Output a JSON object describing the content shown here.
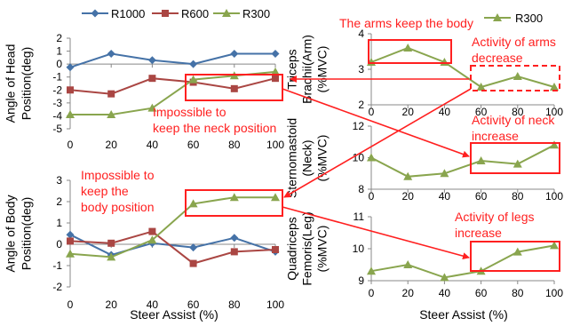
{
  "legend_left": [
    {
      "name": "R1000",
      "color": "#4572A7",
      "marker": "diamond"
    },
    {
      "name": "R600",
      "color": "#AA4643",
      "marker": "square"
    },
    {
      "name": "R300",
      "color": "#89A54E",
      "marker": "triangle"
    }
  ],
  "legend_right": {
    "name": "R300",
    "color": "#89A54E",
    "marker": "triangle"
  },
  "annotation_color": "#ff2020",
  "chart_data": [
    {
      "id": "head",
      "type": "line",
      "ylabel": [
        "Angle of Head",
        "Position(deg)"
      ],
      "x": [
        0,
        20,
        40,
        60,
        80,
        100
      ],
      "xticks": [
        "0",
        "20",
        "40",
        "60",
        "80",
        "100"
      ],
      "ylim": [
        -5,
        2
      ],
      "yticks": [
        -5,
        -4,
        -3,
        -2,
        -1,
        0,
        1,
        2
      ],
      "series": [
        {
          "name": "R1000",
          "color": "#4572A7",
          "marker": "diamond",
          "values": [
            -0.25,
            0.8,
            0.3,
            0.0,
            0.8,
            0.8
          ]
        },
        {
          "name": "R600",
          "color": "#AA4643",
          "marker": "square",
          "values": [
            -2.0,
            -2.3,
            -1.1,
            -1.4,
            -1.9,
            -1.1
          ]
        },
        {
          "name": "R300",
          "color": "#89A54E",
          "marker": "triangle",
          "values": [
            -3.9,
            -3.9,
            -3.4,
            -1.2,
            -0.9,
            -0.6
          ]
        }
      ]
    },
    {
      "id": "body",
      "type": "line",
      "ylabel": [
        "Angle of Body",
        "Position(deg)"
      ],
      "x": [
        0,
        20,
        40,
        60,
        80,
        100
      ],
      "xticks": [
        "0",
        "20",
        "40",
        "60",
        "80",
        "100"
      ],
      "xlabel": "Steer Assist (%)",
      "ylim": [
        -2,
        3
      ],
      "yticks": [
        -2,
        -1,
        0,
        1,
        2,
        3
      ],
      "series": [
        {
          "name": "R1000",
          "color": "#4572A7",
          "marker": "diamond",
          "values": [
            0.45,
            -0.5,
            0.05,
            -0.15,
            0.3,
            -0.35
          ]
        },
        {
          "name": "R600",
          "color": "#AA4643",
          "marker": "square",
          "values": [
            0.15,
            0.05,
            0.6,
            -0.9,
            -0.35,
            -0.25
          ]
        },
        {
          "name": "R300",
          "color": "#89A54E",
          "marker": "triangle",
          "values": [
            -0.45,
            -0.6,
            0.2,
            1.9,
            2.2,
            2.2
          ]
        }
      ]
    },
    {
      "id": "triceps",
      "type": "line",
      "ylabel": [
        "Triceps",
        "Brachii(Arm)",
        "(%MVC)"
      ],
      "x": [
        0,
        20,
        40,
        60,
        80,
        100
      ],
      "xticks": [
        "0",
        "20",
        "40",
        "60",
        "80",
        "100"
      ],
      "ylim": [
        2,
        4
      ],
      "yticks": [
        2,
        3,
        4
      ],
      "series": [
        {
          "name": "R300",
          "color": "#89A54E",
          "marker": "triangle",
          "values": [
            3.2,
            3.6,
            3.2,
            2.5,
            2.8,
            2.5
          ]
        }
      ]
    },
    {
      "id": "sterno",
      "type": "line",
      "ylabel": [
        "Sternomastoid",
        "(Neck)",
        "(%MVC)"
      ],
      "x": [
        0,
        20,
        40,
        60,
        80,
        100
      ],
      "xticks": [
        "0",
        "20",
        "40",
        "60",
        "80",
        "100"
      ],
      "ylim": [
        8,
        12
      ],
      "yticks": [
        8,
        10,
        12
      ],
      "series": [
        {
          "name": "R300",
          "color": "#89A54E",
          "marker": "triangle",
          "values": [
            10.0,
            8.8,
            9.0,
            9.8,
            9.6,
            10.8
          ]
        }
      ]
    },
    {
      "id": "quad",
      "type": "line",
      "ylabel": [
        "Quadriceps",
        "Femoris(Leg)",
        "(%MVC)"
      ],
      "x": [
        0,
        20,
        40,
        60,
        80,
        100
      ],
      "xticks": [
        "0",
        "20",
        "40",
        "60",
        "80",
        "100"
      ],
      "xlabel": "Steer Assist (%)",
      "ylim": [
        9,
        11
      ],
      "yticks": [
        9,
        10,
        11
      ],
      "series": [
        {
          "name": "R300",
          "color": "#89A54E",
          "marker": "triangle",
          "values": [
            9.3,
            9.5,
            9.1,
            9.3,
            9.9,
            10.1
          ]
        }
      ]
    }
  ],
  "annotations": {
    "arms_keep": "The arms keep the body",
    "arms_decrease": [
      "Activity of arms",
      "decrease"
    ],
    "neck_impossible": [
      "Impossible to",
      "keep the neck position"
    ],
    "neck_increase": [
      "Activity of neck",
      "increase"
    ],
    "body_impossible": [
      "Impossible to",
      "keep the",
      "body position"
    ],
    "legs_increase": [
      "Activity of legs",
      "increase"
    ]
  }
}
